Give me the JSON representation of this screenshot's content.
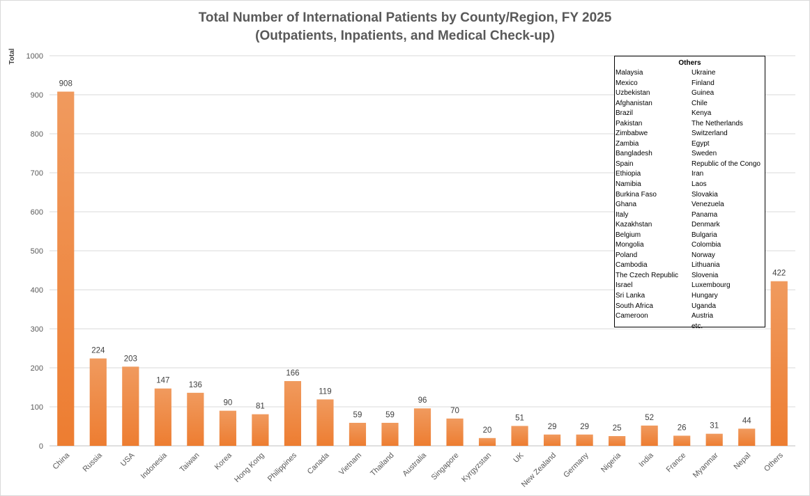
{
  "chart_data": {
    "type": "bar",
    "title_line1": "Total Number of International Patients by County/Region, FY 2025",
    "title_line2": "(Outpatients, Inpatients, and Medical Check-up)",
    "xlabel": "",
    "ylabel": "Total",
    "ylim": [
      0,
      1000
    ],
    "yticks": [
      0,
      100,
      200,
      300,
      400,
      500,
      600,
      700,
      800,
      900,
      1000
    ],
    "grid": true,
    "bar_color": "#ED7D31",
    "categories": [
      "China",
      "Russia",
      "USA",
      "Indonesia",
      "Taiwan",
      "Korea",
      "Hong Kong",
      "Philippines",
      "Canada",
      "Vietnam",
      "Thailand",
      "Australia",
      "Singapore",
      "Kyrgyzstan",
      "UK",
      "New Zealand",
      "Germany",
      "Nigeria",
      "India",
      "France",
      "Myanmar",
      "Nepal",
      "Others"
    ],
    "values": [
      908,
      224,
      203,
      147,
      136,
      90,
      81,
      166,
      119,
      59,
      59,
      96,
      70,
      20,
      51,
      29,
      29,
      25,
      52,
      26,
      31,
      44,
      422
    ]
  },
  "others_box": {
    "title": "Others",
    "left_column": [
      "Malaysia",
      "Mexico",
      "Uzbekistan",
      "Afghanistan",
      "Brazil",
      "Pakistan",
      "Zimbabwe",
      "Zambia",
      "Bangladesh",
      "Spain",
      "Ethiopia",
      "Namibia",
      "Burkina Faso",
      "Ghana",
      "Italy",
      "Kazakhstan",
      "Belgium",
      "Mongolia",
      "Poland",
      "Cambodia",
      "The Czech Republic",
      "Israel",
      "Sri Lanka",
      "South Africa",
      "Cameroon"
    ],
    "right_column": [
      "Ukraine",
      "Finland",
      "Guinea",
      "Chile",
      "Kenya",
      "The Netherlands",
      "Switzerland",
      "Egypt",
      "Sweden",
      "Republic of the Congo",
      "Iran",
      "Laos",
      "Slovakia",
      "Venezuela",
      "Panama",
      "Denmark",
      "Bulgaria",
      "Colombia",
      "Norway",
      "Lithuania",
      "Slovenia",
      "Luxembourg",
      "Hungary",
      "Uganda",
      "Austria",
      "etc."
    ]
  }
}
